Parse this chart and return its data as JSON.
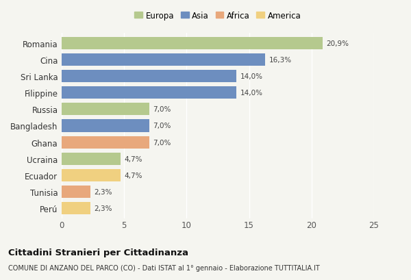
{
  "countries": [
    "Romania",
    "Cina",
    "Sri Lanka",
    "Filippine",
    "Russia",
    "Bangladesh",
    "Ghana",
    "Ucraina",
    "Ecuador",
    "Tunisia",
    "Perú"
  ],
  "values": [
    20.9,
    16.3,
    14.0,
    14.0,
    7.0,
    7.0,
    7.0,
    4.7,
    4.7,
    2.3,
    2.3
  ],
  "labels": [
    "20,9%",
    "16,3%",
    "14,0%",
    "14,0%",
    "7,0%",
    "7,0%",
    "7,0%",
    "4,7%",
    "4,7%",
    "2,3%",
    "2,3%"
  ],
  "colors": [
    "#b5c98e",
    "#6d8ebf",
    "#6d8ebf",
    "#6d8ebf",
    "#b5c98e",
    "#6d8ebf",
    "#e8a87c",
    "#b5c98e",
    "#f0d080",
    "#e8a87c",
    "#f0d080"
  ],
  "continent_colors": {
    "Europa": "#b5c98e",
    "Asia": "#6d8ebf",
    "Africa": "#e8a87c",
    "America": "#f0d080"
  },
  "legend_labels": [
    "Europa",
    "Asia",
    "Africa",
    "America"
  ],
  "xlim": [
    0,
    25
  ],
  "xticks": [
    0,
    5,
    10,
    15,
    20,
    25
  ],
  "title": "Cittadini Stranieri per Cittadinanza",
  "subtitle": "COMUNE DI ANZANO DEL PARCO (CO) - Dati ISTAT al 1° gennaio - Elaborazione TUTTITALIA.IT",
  "bg_color": "#f5f5f0",
  "bar_height": 0.75
}
